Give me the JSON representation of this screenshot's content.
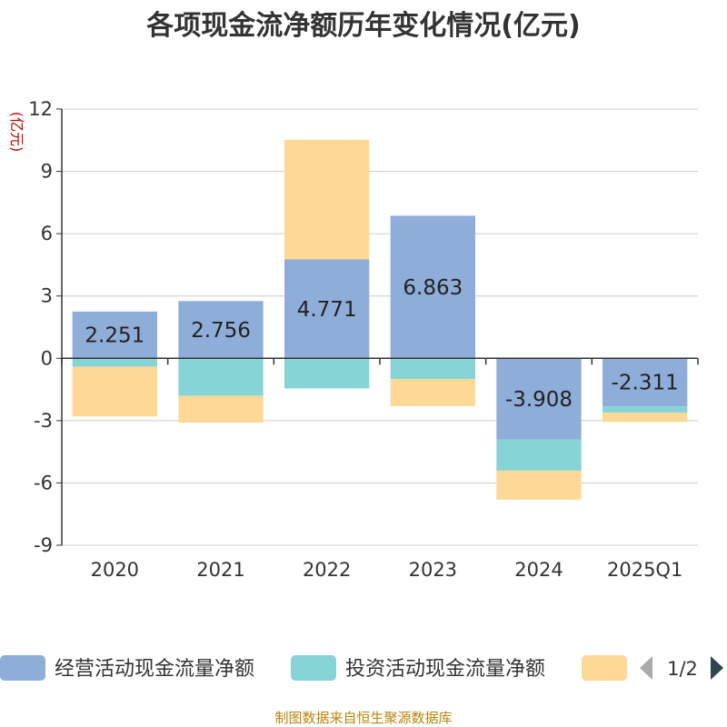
{
  "chart_data": {
    "type": "bar",
    "stacked": true,
    "title": "各项现金流净额历年变化情况(亿元)",
    "ylabel": "(亿元)",
    "ylim": [
      -9,
      12
    ],
    "yticks": [
      12,
      9,
      6,
      3,
      0,
      -3,
      -6,
      -9
    ],
    "grid": true,
    "categories": [
      "2020",
      "2021",
      "2022",
      "2023",
      "2024",
      "2025Q1"
    ],
    "series": [
      {
        "name": "经营活动现金流量净额",
        "color": "#8eadd9",
        "values": [
          2.251,
          2.756,
          4.771,
          6.863,
          -3.908,
          -2.311
        ],
        "labels": [
          "2.251",
          "2.756",
          "4.771",
          "6.863",
          "-3.908",
          "-2.311"
        ]
      },
      {
        "name": "投资活动现金流量净额",
        "color": "#86d4d6",
        "values": [
          -0.4,
          -1.8,
          -1.45,
          -1.0,
          -1.5,
          -0.3
        ]
      },
      {
        "name": "",
        "color": "#fed897",
        "values": [
          -2.4,
          -1.3,
          5.75,
          -1.3,
          -1.4,
          -0.45
        ]
      }
    ],
    "legend": {
      "position": "bottom",
      "page": "1/2"
    },
    "source": "制图数据来自恒生聚源数据库"
  }
}
